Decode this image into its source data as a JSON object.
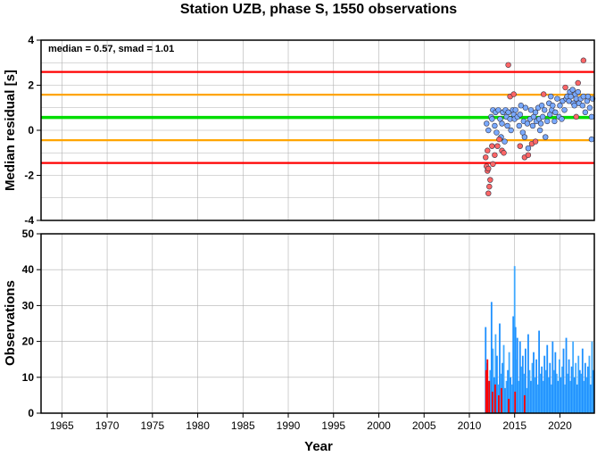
{
  "chart_data": [
    {
      "type": "scatter",
      "title": "Station UZB, phase S, 1550 observations",
      "annotation": "median = 0.57, smad = 1.01",
      "xlabel": "Year",
      "ylabel": "Median residual [s]",
      "xlim": [
        1962.7,
        2023.8
      ],
      "ylim": [
        -4,
        4
      ],
      "x_ticks": [
        "1965",
        "1970",
        "1975",
        "1980",
        "1985",
        "1990",
        "1995",
        "2000",
        "2005",
        "2010",
        "2015",
        "2020"
      ],
      "y_ticks": [
        "-4",
        "-2",
        "0",
        "2",
        "4"
      ],
      "grid": true,
      "reference_lines": [
        {
          "name": "median + 2·smad",
          "y": 2.59,
          "color": "#ff0000"
        },
        {
          "name": "median + 1·smad",
          "y": 1.58,
          "color": "#ffa500"
        },
        {
          "name": "median",
          "y": 0.57,
          "color": "#00dd00"
        },
        {
          "name": "median − 1·smad",
          "y": -0.44,
          "color": "#ffa500"
        },
        {
          "name": "median − 2·smad",
          "y": -1.45,
          "color": "#ff0000"
        }
      ],
      "series": [
        {
          "color": "#7aaaff",
          "points": [
            [
              2011.9,
              0.3
            ],
            [
              2012.1,
              0.0
            ],
            [
              2012.4,
              0.6
            ],
            [
              2012.5,
              0.5
            ],
            [
              2012.6,
              0.9
            ],
            [
              2012.8,
              0.2
            ],
            [
              2012.9,
              0.8
            ],
            [
              2013.0,
              -0.1
            ],
            [
              2013.2,
              0.9
            ],
            [
              2013.4,
              0.5
            ],
            [
              2013.5,
              -0.3
            ],
            [
              2013.6,
              0.3
            ],
            [
              2013.7,
              0.8
            ],
            [
              2013.9,
              -0.5
            ],
            [
              2014.0,
              0.9
            ],
            [
              2014.1,
              0.6
            ],
            [
              2014.3,
              0.8
            ],
            [
              2014.5,
              0.5
            ],
            [
              2014.6,
              0.0
            ],
            [
              2014.8,
              0.9
            ],
            [
              2014.9,
              0.7
            ],
            [
              2015.0,
              0.5
            ],
            [
              2015.1,
              0.9
            ],
            [
              2015.3,
              0.6
            ],
            [
              2015.5,
              0.2
            ],
            [
              2015.6,
              0.7
            ],
            [
              2015.7,
              1.1
            ],
            [
              2015.9,
              -0.1
            ],
            [
              2016.0,
              0.4
            ],
            [
              2016.1,
              -0.3
            ],
            [
              2016.2,
              1.0
            ],
            [
              2016.4,
              0.3
            ],
            [
              2016.5,
              -0.8
            ],
            [
              2016.7,
              0.5
            ],
            [
              2016.8,
              0.9
            ],
            [
              2017.0,
              0.2
            ],
            [
              2017.1,
              0.6
            ],
            [
              2017.3,
              0.8
            ],
            [
              2017.4,
              0.4
            ],
            [
              2017.6,
              1.0
            ],
            [
              2017.7,
              0.5
            ],
            [
              2017.9,
              0.3
            ],
            [
              2018.0,
              1.1
            ],
            [
              2018.1,
              0.6
            ],
            [
              2018.3,
              0.9
            ],
            [
              2018.4,
              -0.3
            ],
            [
              2018.6,
              0.4
            ],
            [
              2018.8,
              1.2
            ],
            [
              2018.9,
              0.7
            ],
            [
              2019.1,
              0.9
            ],
            [
              2019.2,
              1.1
            ],
            [
              2019.4,
              0.4
            ],
            [
              2019.5,
              0.8
            ],
            [
              2019.7,
              1.4
            ],
            [
              2019.9,
              0.6
            ],
            [
              2020.0,
              1.1
            ],
            [
              2020.2,
              0.5
            ],
            [
              2020.3,
              1.3
            ],
            [
              2020.5,
              0.9
            ],
            [
              2020.7,
              1.4
            ],
            [
              2020.8,
              1.5
            ],
            [
              2021.0,
              1.3
            ],
            [
              2021.1,
              1.7
            ],
            [
              2021.2,
              1.5
            ],
            [
              2021.4,
              1.8
            ],
            [
              2021.5,
              1.2
            ],
            [
              2021.7,
              1.6
            ],
            [
              2021.8,
              1.4
            ],
            [
              2022.0,
              1.7
            ],
            [
              2022.1,
              1.2
            ],
            [
              2022.3,
              1.4
            ],
            [
              2022.5,
              1.1
            ],
            [
              2022.6,
              1.5
            ],
            [
              2022.8,
              0.8
            ],
            [
              2023.0,
              1.3
            ],
            [
              2023.1,
              1.5
            ],
            [
              2023.3,
              1.0
            ],
            [
              2023.5,
              0.6
            ],
            [
              2023.6,
              1.4
            ],
            [
              2023.5,
              -0.4
            ],
            [
              2021.6,
              1.1
            ],
            [
              2019.0,
              1.5
            ],
            [
              2017.8,
              0.0
            ],
            [
              2014.2,
              0.2
            ]
          ]
        },
        {
          "color": "#ff6666",
          "points": [
            [
              2011.8,
              -1.2
            ],
            [
              2011.9,
              -1.6
            ],
            [
              2012.0,
              -1.8
            ],
            [
              2012.1,
              -1.7
            ],
            [
              2012.2,
              -2.5
            ],
            [
              2012.3,
              -2.2
            ],
            [
              2012.1,
              -2.8
            ],
            [
              2012.0,
              -0.9
            ],
            [
              2012.5,
              -0.7
            ],
            [
              2012.6,
              -1.5
            ],
            [
              2012.8,
              -1.1
            ],
            [
              2013.1,
              -0.7
            ],
            [
              2013.3,
              -0.4
            ],
            [
              2013.6,
              -0.9
            ],
            [
              2014.3,
              2.9
            ],
            [
              2014.5,
              1.5
            ],
            [
              2014.9,
              1.6
            ],
            [
              2015.6,
              -0.7
            ],
            [
              2016.1,
              -1.2
            ],
            [
              2016.5,
              -1.1
            ],
            [
              2016.9,
              -0.6
            ],
            [
              2017.3,
              -0.5
            ],
            [
              2018.2,
              1.6
            ],
            [
              2020.6,
              1.9
            ],
            [
              2022.0,
              2.1
            ],
            [
              2022.6,
              3.1
            ],
            [
              2021.8,
              0.6
            ],
            [
              2013.8,
              -1.0
            ]
          ]
        }
      ]
    },
    {
      "type": "bar",
      "xlabel": "Year",
      "ylabel": "Observations",
      "xlim": [
        1962.7,
        2023.8
      ],
      "ylim": [
        0,
        50
      ],
      "x_ticks": [
        "1965",
        "1970",
        "1975",
        "1980",
        "1985",
        "1990",
        "1995",
        "2000",
        "2005",
        "2010",
        "2015",
        "2020"
      ],
      "y_ticks": [
        "0",
        "10",
        "20",
        "30",
        "40",
        "50"
      ],
      "grid": true,
      "series": [
        {
          "color": "#1e90ff",
          "x": [
            2011.8,
            2011.95,
            2012.1,
            2012.3,
            2012.45,
            2012.6,
            2012.75,
            2012.9,
            2013.05,
            2013.2,
            2013.35,
            2013.5,
            2013.65,
            2013.8,
            2013.95,
            2014.1,
            2014.25,
            2014.4,
            2014.55,
            2014.7,
            2014.85,
            2015.0,
            2015.1,
            2015.2,
            2015.3,
            2015.45,
            2015.6,
            2015.75,
            2015.9,
            2016.05,
            2016.2,
            2016.35,
            2016.5,
            2016.65,
            2016.8,
            2016.95,
            2017.1,
            2017.25,
            2017.4,
            2017.55,
            2017.7,
            2017.85,
            2018.0,
            2018.15,
            2018.3,
            2018.45,
            2018.6,
            2018.75,
            2018.9,
            2019.05,
            2019.2,
            2019.35,
            2019.5,
            2019.65,
            2019.8,
            2019.95,
            2020.1,
            2020.25,
            2020.4,
            2020.55,
            2020.7,
            2020.85,
            2021.0,
            2021.15,
            2021.3,
            2021.45,
            2021.6,
            2021.75,
            2021.9,
            2022.05,
            2022.2,
            2022.35,
            2022.5,
            2022.65,
            2022.8,
            2022.95,
            2023.1,
            2023.25,
            2023.4,
            2023.55,
            2023.7
          ],
          "values": [
            24,
            14,
            9,
            12,
            31,
            18,
            10,
            22,
            16,
            8,
            25,
            11,
            14,
            19,
            7,
            9,
            12,
            17,
            10,
            8,
            27,
            41,
            24,
            15,
            21,
            9,
            20,
            13,
            16,
            11,
            18,
            7,
            22,
            12,
            9,
            14,
            17,
            10,
            15,
            8,
            23,
            11,
            13,
            9,
            16,
            12,
            19,
            10,
            14,
            8,
            20,
            12,
            17,
            11,
            9,
            15,
            10,
            13,
            18,
            8,
            21,
            11,
            15,
            9,
            13,
            20,
            10,
            14,
            8,
            16,
            12,
            11,
            18,
            9,
            14,
            10,
            13,
            16,
            8,
            20,
            12
          ]
        }
      ],
      "highlight": {
        "color": "#ff0000",
        "x": [
          2011.85,
          2012.0,
          2012.2,
          2012.55,
          2012.85,
          2013.25,
          2013.55,
          2014.35,
          2015.05,
          2016.1
        ],
        "values": [
          12,
          15,
          9,
          6,
          8,
          5,
          7,
          4,
          6,
          5
        ]
      }
    }
  ]
}
